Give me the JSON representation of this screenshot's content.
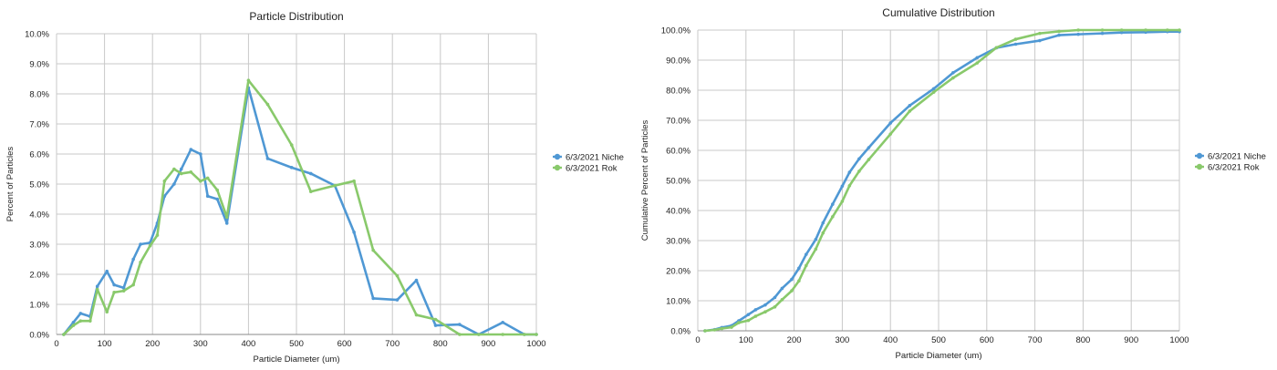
{
  "chart_data": [
    {
      "type": "line",
      "title": "Particle Distribution",
      "xlabel": "Particle Diameter (um)",
      "ylabel": "Percent of Particles",
      "xlim": [
        0,
        1000
      ],
      "ylim": [
        0,
        10
      ],
      "xticks": [
        0,
        100,
        200,
        300,
        400,
        500,
        600,
        700,
        800,
        900,
        1000
      ],
      "xtick_labels": [
        "0",
        "100",
        "200",
        "300",
        "400",
        "500",
        "600",
        "700",
        "800",
        "900",
        "1000"
      ],
      "yticks": [
        0,
        1,
        2,
        3,
        4,
        5,
        6,
        7,
        8,
        9,
        10
      ],
      "ytick_labels": [
        "0.0%",
        "1.0%",
        "2.0%",
        "3.0%",
        "4.0%",
        "5.0%",
        "6.0%",
        "7.0%",
        "8.0%",
        "9.0%",
        "10.0%"
      ],
      "grid": true,
      "legend_position": "right",
      "series": [
        {
          "name": "6/3/2021 Niche",
          "color": "#4f98d4",
          "points": [
            [
              15,
              0
            ],
            [
              35,
              0.4
            ],
            [
              50,
              0.7
            ],
            [
              70,
              0.6
            ],
            [
              85,
              1.6
            ],
            [
              105,
              2.1
            ],
            [
              120,
              1.65
            ],
            [
              140,
              1.55
            ],
            [
              160,
              2.5
            ],
            [
              175,
              3.0
            ],
            [
              195,
              3.05
            ],
            [
              210,
              3.7
            ],
            [
              225,
              4.6
            ],
            [
              245,
              5.0
            ],
            [
              260,
              5.5
            ],
            [
              280,
              6.15
            ],
            [
              300,
              6.0
            ],
            [
              315,
              4.6
            ],
            [
              335,
              4.5
            ],
            [
              355,
              3.7
            ],
            [
              400,
              8.2
            ],
            [
              440,
              5.85
            ],
            [
              490,
              5.55
            ],
            [
              530,
              5.35
            ],
            [
              580,
              4.95
            ],
            [
              620,
              3.4
            ],
            [
              660,
              1.2
            ],
            [
              710,
              1.15
            ],
            [
              750,
              1.8
            ],
            [
              790,
              0.3
            ],
            [
              840,
              0.33
            ],
            [
              880,
              0
            ],
            [
              930,
              0.4
            ],
            [
              975,
              0
            ],
            [
              1000,
              0
            ]
          ]
        },
        {
          "name": "6/3/2021 Rok",
          "color": "#89c96b",
          "points": [
            [
              15,
              0
            ],
            [
              35,
              0.3
            ],
            [
              50,
              0.45
            ],
            [
              70,
              0.45
            ],
            [
              85,
              1.5
            ],
            [
              105,
              0.75
            ],
            [
              120,
              1.4
            ],
            [
              140,
              1.45
            ],
            [
              160,
              1.65
            ],
            [
              175,
              2.4
            ],
            [
              195,
              2.95
            ],
            [
              210,
              3.3
            ],
            [
              225,
              5.1
            ],
            [
              245,
              5.5
            ],
            [
              260,
              5.35
            ],
            [
              280,
              5.4
            ],
            [
              300,
              5.1
            ],
            [
              315,
              5.2
            ],
            [
              335,
              4.8
            ],
            [
              355,
              3.9
            ],
            [
              400,
              8.45
            ],
            [
              440,
              7.65
            ],
            [
              490,
              6.3
            ],
            [
              530,
              4.75
            ],
            [
              580,
              4.95
            ],
            [
              620,
              5.1
            ],
            [
              660,
              2.8
            ],
            [
              710,
              1.95
            ],
            [
              750,
              0.65
            ],
            [
              790,
              0.5
            ],
            [
              840,
              0
            ],
            [
              880,
              0
            ],
            [
              930,
              0
            ],
            [
              975,
              0
            ],
            [
              1000,
              0
            ]
          ]
        }
      ]
    },
    {
      "type": "line",
      "title": "Cumulative Distribution",
      "xlabel": "Particle Diameter (um)",
      "ylabel": "Cumulative Percent of Particles",
      "xlim": [
        0,
        1000
      ],
      "ylim": [
        0,
        100
      ],
      "xticks": [
        0,
        100,
        200,
        300,
        400,
        500,
        600,
        700,
        800,
        900,
        1000
      ],
      "xtick_labels": [
        "0",
        "100",
        "200",
        "300",
        "400",
        "500",
        "600",
        "700",
        "800",
        "900",
        "1000"
      ],
      "yticks": [
        0,
        10,
        20,
        30,
        40,
        50,
        60,
        70,
        80,
        90,
        100
      ],
      "ytick_labels": [
        "0.0%",
        "10.0%",
        "20.0%",
        "30.0%",
        "40.0%",
        "50.0%",
        "60.0%",
        "70.0%",
        "80.0%",
        "90.0%",
        "100.0%"
      ],
      "grid": true,
      "legend_position": "right",
      "series": [
        {
          "name": "6/3/2021 Niche",
          "color": "#4f98d4",
          "points": [
            [
              15,
              0
            ],
            [
              35,
              0.4
            ],
            [
              50,
              1.1
            ],
            [
              70,
              1.7
            ],
            [
              85,
              3.3
            ],
            [
              105,
              5.4
            ],
            [
              120,
              7.0
            ],
            [
              140,
              8.6
            ],
            [
              160,
              11.1
            ],
            [
              175,
              14.1
            ],
            [
              195,
              17.1
            ],
            [
              210,
              20.8
            ],
            [
              225,
              25.4
            ],
            [
              245,
              30.4
            ],
            [
              260,
              35.9
            ],
            [
              280,
              42.1
            ],
            [
              300,
              48.1
            ],
            [
              315,
              52.7
            ],
            [
              335,
              57.2
            ],
            [
              355,
              60.9
            ],
            [
              400,
              69.1
            ],
            [
              440,
              74.9
            ],
            [
              490,
              80.5
            ],
            [
              530,
              85.8
            ],
            [
              580,
              90.8
            ],
            [
              620,
              94.1
            ],
            [
              660,
              95.3
            ],
            [
              710,
              96.5
            ],
            [
              750,
              98.3
            ],
            [
              790,
              98.6
            ],
            [
              840,
              98.9
            ],
            [
              880,
              99.2
            ],
            [
              930,
              99.3
            ],
            [
              975,
              99.5
            ],
            [
              1000,
              99.5
            ]
          ]
        },
        {
          "name": "6/3/2021 Rok",
          "color": "#89c96b",
          "points": [
            [
              15,
              0
            ],
            [
              35,
              0.3
            ],
            [
              50,
              0.75
            ],
            [
              70,
              1.2
            ],
            [
              85,
              2.7
            ],
            [
              105,
              3.45
            ],
            [
              120,
              4.85
            ],
            [
              140,
              6.3
            ],
            [
              160,
              7.95
            ],
            [
              175,
              10.35
            ],
            [
              195,
              13.3
            ],
            [
              210,
              16.6
            ],
            [
              225,
              21.7
            ],
            [
              245,
              27.2
            ],
            [
              260,
              32.55
            ],
            [
              280,
              37.95
            ],
            [
              300,
              43.05
            ],
            [
              315,
              48.25
            ],
            [
              335,
              53.05
            ],
            [
              355,
              56.95
            ],
            [
              400,
              65.4
            ],
            [
              440,
              73.05
            ],
            [
              490,
              79.35
            ],
            [
              530,
              84.1
            ],
            [
              580,
              89.05
            ],
            [
              620,
              94.15
            ],
            [
              660,
              96.95
            ],
            [
              710,
              98.9
            ],
            [
              750,
              99.55
            ],
            [
              790,
              100
            ],
            [
              840,
              100
            ],
            [
              880,
              100
            ],
            [
              930,
              100
            ],
            [
              975,
              100
            ],
            [
              1000,
              100
            ]
          ]
        }
      ]
    }
  ]
}
